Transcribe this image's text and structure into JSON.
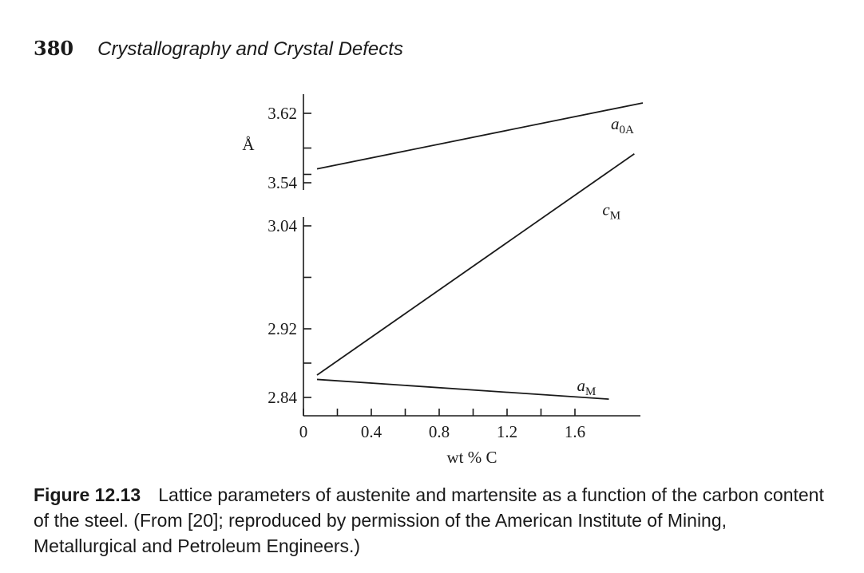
{
  "header": {
    "page_number": "380",
    "running_title": "Crystallography and Crystal Defects"
  },
  "caption": {
    "label": "Figure 12.13",
    "text": "Lattice parameters of austenite and martensite as a function of the carbon content of the steel. (From [20]; reproduced by permission of the American Institute of Mining, Metallurgical and Petroleum Engineers.)"
  },
  "chart_data": {
    "type": "line",
    "xlabel": "wt % C",
    "ylabel": "Å",
    "xlim": [
      0,
      2.0
    ],
    "x_ticks": [
      0,
      0.4,
      0.8,
      1.2,
      1.6
    ],
    "x_minor_ticks": [
      0.2,
      0.6,
      1.0,
      1.4
    ],
    "broken_y_axis": true,
    "panels": [
      {
        "position": "top",
        "ylim": [
          3.54,
          3.63
        ],
        "y_ticks": [
          3.54,
          3.62
        ],
        "y_minor_ticks": [
          3.58
        ],
        "series": [
          {
            "name": "a",
            "subscript": "0A",
            "x": [
              0.08,
              2.0
            ],
            "values": [
              3.556,
              3.632
            ]
          }
        ]
      },
      {
        "position": "bottom",
        "ylim": [
          2.82,
          3.12
        ],
        "y_ticks": [
          2.84,
          2.92,
          3.04
        ],
        "y_minor_ticks": [
          2.88,
          2.98,
          3.1
        ],
        "series": [
          {
            "name": "c",
            "subscript": "M",
            "x": [
              0.08,
              1.95
            ],
            "values": [
              2.866,
              3.124
            ]
          },
          {
            "name": "a",
            "subscript": "M",
            "x": [
              0.08,
              1.8
            ],
            "values": [
              2.861,
              2.838
            ]
          }
        ]
      }
    ]
  }
}
